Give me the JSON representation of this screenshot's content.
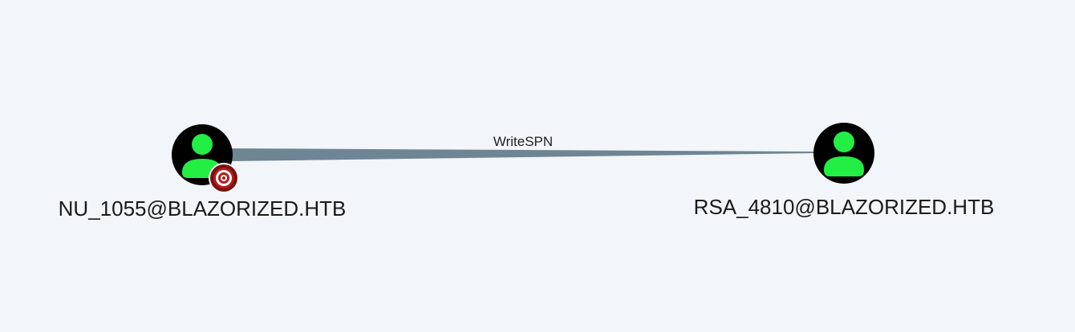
{
  "graph": {
    "nodes": [
      {
        "id": "source",
        "label": "NU_1055@BLAZORIZED.HTB",
        "icon": "user-icon",
        "badge": "target-icon",
        "owned": true
      },
      {
        "id": "target",
        "label": "RSA_4810@BLAZORIZED.HTB",
        "icon": "user-icon",
        "owned": false
      }
    ],
    "edges": [
      {
        "from": "source",
        "to": "target",
        "label": "WriteSPN"
      }
    ]
  },
  "colors": {
    "background": "#f2f5f9",
    "node_fill": "#000000",
    "user_icon": "#22ee44",
    "edge": "#6f8593",
    "badge_outer": "#7a1010",
    "badge_ring": "#ffffff",
    "badge_inner": "#b31b1b"
  }
}
